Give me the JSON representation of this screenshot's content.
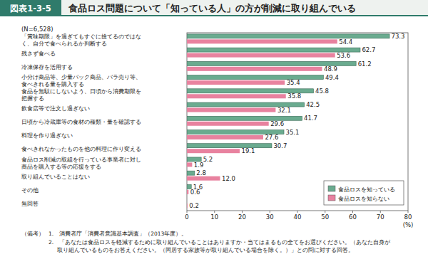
{
  "chart_data": {
    "type": "bar",
    "orientation": "horizontal",
    "badge": "図表1-3-5",
    "title": "食品ロス問題について「知っている人」の方が削減に取り組んでいる",
    "subtitle": "(N=6,528)",
    "x_label": "(%)",
    "categories": [
      "「賞味期限」を過ぎてもすぐに捨てるのではな\nく、自分で食べられるか判断する",
      "残さず食べる",
      "冷凍保存を活用する",
      "小分け商品等、少量パック商品、バラ売り等、\n食べきれる量を購入する",
      "食品を無駄にしないよう、日頃から消費期限を\n把握する",
      "飲食店等で注文し過ぎない",
      "日頃から冷蔵庫等の食材の種類・量を確認する",
      "料理を作り過ぎない",
      "食べきれなかったものを他の料理に作り変える",
      "食品ロス削減の取組を行っている事業者に対し\n商品を購入する等の応援をする",
      "取り組んでいることはない",
      "その他",
      "無回答"
    ],
    "series": [
      {
        "name": "食品ロスを知っている",
        "color": "#6aab8f",
        "values": [
          73.3,
          62.7,
          61.2,
          49.4,
          45.8,
          42.5,
          41.7,
          35.1,
          30.7,
          5.2,
          2.8,
          1.6,
          null
        ],
        "value_labels": [
          "73.3",
          "62.7",
          "61.2",
          "49.4",
          "45.8",
          "42.5",
          "41.7",
          "35.1",
          "30.7",
          "5.2",
          "2.8",
          "1.6",
          null
        ]
      },
      {
        "name": "食品ロスを知らない",
        "color": "#e8829f",
        "values": [
          54.4,
          53.6,
          48.9,
          35.4,
          35.8,
          32.1,
          29.6,
          27.6,
          19.1,
          1.9,
          12.0,
          0.6,
          0.2
        ],
        "value_labels": [
          "54.4",
          "53.6",
          "48.9",
          "35.4",
          "35.8",
          "32.1",
          "29.6",
          "27.6",
          "19.1",
          "1.9",
          "12.0",
          "0.6",
          "0.2"
        ]
      }
    ],
    "xlim": [
      0,
      80
    ],
    "xticks": [
      0,
      10,
      20,
      30,
      40,
      50,
      60,
      70,
      80
    ],
    "grid": false,
    "legend": "lower right",
    "data_labels": true,
    "notes_label": "（備考）",
    "notes": [
      "1.　消費者庁「消費者意識基本調査」（2013年度）。",
      "2.　「あなたは食品ロスを軽減するために取り組んでいることはありますか・当てはまるもの全てをお選びください。（あなた自身が",
      "取り組んでいるものをお答えください。（同居する家族等が取り組んでいる場合を除く。）」との問に対する回答。"
    ]
  }
}
